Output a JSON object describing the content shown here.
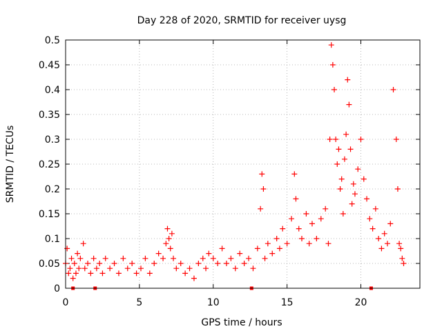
{
  "chart_data": {
    "type": "scatter",
    "title": "Day 228 of 2020, SRMTID for receiver uysg",
    "xlabel": "GPS time / hours",
    "ylabel": "SRMTID / TECUs",
    "xlim": [
      0,
      24
    ],
    "ylim": [
      0,
      0.5
    ],
    "xticks": [
      0,
      5,
      10,
      15,
      20
    ],
    "yticks": [
      0,
      0.05,
      0.1,
      0.15,
      0.2,
      0.25,
      0.3,
      0.35,
      0.4,
      0.45,
      0.5
    ],
    "grid": true,
    "marker": "+",
    "series": [
      {
        "name": "SRMTID",
        "color": "#ff0000",
        "x": [
          0.0,
          0.1,
          0.2,
          0.3,
          0.4,
          0.5,
          0.6,
          0.7,
          0.8,
          0.9,
          1.0,
          1.2,
          1.3,
          1.5,
          1.7,
          1.9,
          2.1,
          2.3,
          2.5,
          2.7,
          3.0,
          3.3,
          3.6,
          3.9,
          4.2,
          4.5,
          4.8,
          5.1,
          5.4,
          5.7,
          6.0,
          6.3,
          6.6,
          6.8,
          6.9,
          7.0,
          7.1,
          7.2,
          7.3,
          7.5,
          7.8,
          8.1,
          8.4,
          8.7,
          9.0,
          9.3,
          9.5,
          9.7,
          10.0,
          10.3,
          10.6,
          10.9,
          11.2,
          11.5,
          11.8,
          12.1,
          12.4,
          12.7,
          13.0,
          13.2,
          13.3,
          13.4,
          13.5,
          13.7,
          14.0,
          14.3,
          14.5,
          14.7,
          15.0,
          15.3,
          15.5,
          15.6,
          15.8,
          16.0,
          16.3,
          16.5,
          16.7,
          17.0,
          17.3,
          17.6,
          17.8,
          17.9,
          18.0,
          18.1,
          18.2,
          18.3,
          18.4,
          18.5,
          18.6,
          18.7,
          18.8,
          18.9,
          19.0,
          19.1,
          19.2,
          19.3,
          19.4,
          19.5,
          19.6,
          19.8,
          20.0,
          20.2,
          20.4,
          20.6,
          20.8,
          21.0,
          21.2,
          21.4,
          21.6,
          21.8,
          22.0,
          22.2,
          22.4,
          22.5,
          22.6,
          22.7,
          22.8,
          22.9
        ],
        "y": [
          0.05,
          0.08,
          0.03,
          0.04,
          0.06,
          0.02,
          0.05,
          0.03,
          0.07,
          0.04,
          0.06,
          0.09,
          0.04,
          0.05,
          0.03,
          0.06,
          0.04,
          0.05,
          0.03,
          0.06,
          0.04,
          0.05,
          0.03,
          0.06,
          0.04,
          0.05,
          0.03,
          0.04,
          0.06,
          0.03,
          0.05,
          0.07,
          0.06,
          0.09,
          0.12,
          0.1,
          0.08,
          0.11,
          0.06,
          0.04,
          0.05,
          0.03,
          0.04,
          0.02,
          0.05,
          0.06,
          0.04,
          0.07,
          0.06,
          0.05,
          0.08,
          0.05,
          0.06,
          0.04,
          0.07,
          0.05,
          0.06,
          0.04,
          0.08,
          0.16,
          0.23,
          0.2,
          0.06,
          0.09,
          0.07,
          0.1,
          0.08,
          0.12,
          0.09,
          0.14,
          0.23,
          0.18,
          0.12,
          0.1,
          0.15,
          0.09,
          0.13,
          0.1,
          0.14,
          0.16,
          0.09,
          0.3,
          0.49,
          0.45,
          0.4,
          0.3,
          0.25,
          0.28,
          0.2,
          0.22,
          0.15,
          0.26,
          0.31,
          0.42,
          0.37,
          0.28,
          0.17,
          0.21,
          0.19,
          0.24,
          0.3,
          0.22,
          0.18,
          0.14,
          0.12,
          0.16,
          0.1,
          0.08,
          0.11,
          0.09,
          0.13,
          0.4,
          0.3,
          0.2,
          0.09,
          0.08,
          0.06,
          0.05
        ]
      }
    ],
    "axis_markers_x": [
      0.5,
      2.0,
      12.6,
      20.7
    ]
  }
}
